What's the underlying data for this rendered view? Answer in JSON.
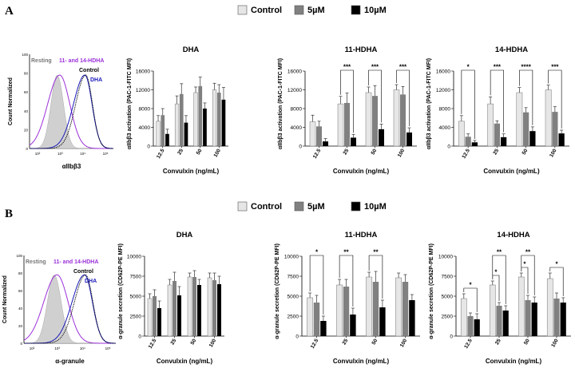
{
  "colors": {
    "control": "#e6e6e6",
    "c5": "#808080",
    "c10": "#000000",
    "purple": "#9b30d9",
    "blue": "#1a1ab8",
    "resting": "#d0d0d0"
  },
  "panels": [
    {
      "letter": "A",
      "legend": [
        "Control",
        "5µM",
        "10µM"
      ],
      "hist": {
        "ylabel": "Count Normalized",
        "xlabel": "αIIbβ3",
        "yticks": [
          "100",
          "80",
          "60",
          "40",
          "20",
          "0"
        ],
        "xticks": [
          "10²",
          "10³",
          "10⁴",
          "10⁵"
        ],
        "labels": {
          "resting": "Resting",
          "hdha": "11- and 14-HDHA",
          "control": "Control",
          "dha": "DHA"
        }
      },
      "ylabel": "αIIbβ3 activation (PAC-1-FITC MFI)"
    },
    {
      "letter": "B",
      "legend": [
        "Control",
        "5µM",
        "10µM"
      ],
      "hist": {
        "ylabel": "Count Normalized",
        "xlabel": "α-granule",
        "yticks": [
          "100",
          "80",
          "60",
          "40",
          "20",
          "0"
        ],
        "xticks": [
          "10²",
          "10³",
          "10⁴",
          "10⁵"
        ],
        "labels": {
          "resting": "Resting",
          "hdha": "11- and 14-HDHA",
          "control": "Control",
          "dha": "DHA"
        }
      },
      "ylabel": "α-granule secretion (CD62P-PE MFI)"
    }
  ],
  "chart_data": [
    {
      "type": "bar",
      "title": "DHA",
      "xlabel": "Convulxin (ng/mL)",
      "ylabel": "αIIbβ3 activation (PAC-1-FITC MFI)",
      "categories": [
        "12.5",
        "25",
        "50",
        "100"
      ],
      "ylim": [
        0,
        16000
      ],
      "yticks": [
        "0",
        "4000",
        "8000",
        "12000",
        "16000"
      ],
      "series": [
        {
          "name": "Control",
          "values": [
            5300,
            9000,
            11400,
            12000
          ],
          "err": [
            1200,
            1700,
            1200,
            1400
          ]
        },
        {
          "name": "5µM",
          "values": [
            6600,
            11100,
            12800,
            11400
          ],
          "err": [
            1400,
            2200,
            1900,
            1700
          ]
        },
        {
          "name": "10µM",
          "values": [
            2600,
            5000,
            8000,
            9900
          ],
          "err": [
            1000,
            1500,
            1200,
            2600
          ]
        }
      ],
      "significance": []
    },
    {
      "type": "bar",
      "title": "11-HDHA",
      "xlabel": "Convulxin (ng/mL)",
      "ylabel": "αIIbβ3 activation (PAC-1-FITC MFI)",
      "categories": [
        "12.5",
        "25",
        "50",
        "100"
      ],
      "ylim": [
        0,
        16000
      ],
      "yticks": [
        "0",
        "4000",
        "8000",
        "12000",
        "16000"
      ],
      "series": [
        {
          "name": "Control",
          "values": [
            5200,
            9000,
            11400,
            12000
          ],
          "err": [
            1400,
            1600,
            1200,
            1100
          ]
        },
        {
          "name": "5µM",
          "values": [
            4200,
            9200,
            10700,
            11000
          ],
          "err": [
            1100,
            2100,
            2200,
            1700
          ]
        },
        {
          "name": "10µM",
          "values": [
            1000,
            1800,
            3600,
            2900
          ],
          "err": [
            600,
            700,
            1100,
            1000
          ]
        }
      ],
      "significance": [
        {
          "cat": 1,
          "from": 0,
          "to": 2,
          "label": "***"
        },
        {
          "cat": 2,
          "from": 0,
          "to": 2,
          "label": "***"
        },
        {
          "cat": 3,
          "from": 0,
          "to": 2,
          "label": "***"
        }
      ]
    },
    {
      "type": "bar",
      "title": "14-HDHA",
      "xlabel": "Convulxin (ng/mL)",
      "ylabel": "αIIbβ3 activation (PAC-1-FITC MFI)",
      "categories": [
        "12.5",
        "25",
        "50",
        "100"
      ],
      "ylim": [
        0,
        16000
      ],
      "yticks": [
        "0",
        "4000",
        "8000",
        "12000",
        "16000"
      ],
      "series": [
        {
          "name": "Control",
          "values": [
            5300,
            9000,
            11400,
            12000
          ],
          "err": [
            1200,
            1500,
            1100,
            1000
          ]
        },
        {
          "name": "5µM",
          "values": [
            2000,
            4800,
            7200,
            7300
          ],
          "err": [
            600,
            600,
            1000,
            1100
          ]
        },
        {
          "name": "10µM",
          "values": [
            800,
            1900,
            3200,
            2700
          ],
          "err": [
            400,
            700,
            900,
            700
          ]
        }
      ],
      "significance": [
        {
          "cat": 0,
          "from": 0,
          "to": 2,
          "label": "*"
        },
        {
          "cat": 1,
          "from": 0,
          "to": 2,
          "label": "***"
        },
        {
          "cat": 2,
          "from": 0,
          "to": 2,
          "label": "****"
        },
        {
          "cat": 3,
          "from": 0,
          "to": 2,
          "label": "***"
        }
      ]
    },
    {
      "type": "bar",
      "title": "DHA",
      "xlabel": "Convulxin (ng/mL)",
      "ylabel": "α-granule secretion (CD62P-PE MFI)",
      "categories": [
        "12.5",
        "25",
        "50",
        "100"
      ],
      "ylim": [
        0,
        10000
      ],
      "yticks": [
        "0",
        "2500",
        "5000",
        "7500",
        "10000"
      ],
      "series": [
        {
          "name": "Control",
          "values": [
            4700,
            6400,
            7400,
            7300
          ],
          "err": [
            600,
            700,
            500,
            600
          ]
        },
        {
          "name": "5µM",
          "values": [
            5000,
            6900,
            7400,
            7000
          ],
          "err": [
            800,
            1100,
            800,
            900
          ]
        },
        {
          "name": "10µM",
          "values": [
            3500,
            5100,
            6400,
            6500
          ],
          "err": [
            900,
            1100,
            700,
            1000
          ]
        }
      ],
      "significance": []
    },
    {
      "type": "bar",
      "title": "11-HDHA",
      "xlabel": "Convulxin (ng/mL)",
      "ylabel": "α-granule secretion (CD62P-PE MFI)",
      "categories": [
        "12.5",
        "25",
        "50",
        "100"
      ],
      "ylim": [
        0,
        10000
      ],
      "yticks": [
        "0",
        "2500",
        "5000",
        "7500",
        "10000"
      ],
      "series": [
        {
          "name": "Control",
          "values": [
            4800,
            6400,
            7400,
            7300
          ],
          "err": [
            600,
            700,
            600,
            600
          ]
        },
        {
          "name": "5µM",
          "values": [
            4200,
            6200,
            6800,
            6800
          ],
          "err": [
            900,
            900,
            1300,
            900
          ]
        },
        {
          "name": "10µM",
          "values": [
            1900,
            2700,
            3600,
            4500
          ],
          "err": [
            600,
            800,
            900,
            700
          ]
        }
      ],
      "significance": [
        {
          "cat": 0,
          "from": 0,
          "to": 2,
          "label": "*"
        },
        {
          "cat": 1,
          "from": 0,
          "to": 2,
          "label": "**"
        },
        {
          "cat": 2,
          "from": 0,
          "to": 2,
          "label": "**"
        }
      ]
    },
    {
      "type": "bar",
      "title": "14-HDHA",
      "xlabel": "Convulxin (ng/mL)",
      "ylabel": "α-granule secretion (CD62P-PE MFI)",
      "categories": [
        "12.5",
        "25",
        "50",
        "100"
      ],
      "ylim": [
        0,
        10000
      ],
      "yticks": [
        "0",
        "2500",
        "5000",
        "7500",
        "10000"
      ],
      "series": [
        {
          "name": "Control",
          "values": [
            4700,
            6400,
            7400,
            7200
          ],
          "err": [
            600,
            500,
            500,
            700
          ]
        },
        {
          "name": "5µM",
          "values": [
            2500,
            3800,
            4500,
            4700
          ],
          "err": [
            400,
            400,
            600,
            700
          ]
        },
        {
          "name": "10µM",
          "values": [
            2100,
            3200,
            4200,
            4200
          ],
          "err": [
            700,
            600,
            700,
            600
          ]
        }
      ],
      "significance": [
        {
          "cat": 0,
          "from": 0,
          "to": 2,
          "label": "*",
          "lvl": 0
        },
        {
          "cat": 1,
          "from": 0,
          "to": 2,
          "label": "**",
          "lvl": 1
        },
        {
          "cat": 1,
          "from": 0,
          "to": 1,
          "label": "*",
          "lvl": 0
        },
        {
          "cat": 2,
          "from": 0,
          "to": 2,
          "label": "**",
          "lvl": 1
        },
        {
          "cat": 2,
          "from": 0,
          "to": 1,
          "label": "*",
          "lvl": 0
        },
        {
          "cat": 3,
          "from": 0,
          "to": 2,
          "label": "*",
          "lvl": 0
        }
      ]
    }
  ]
}
